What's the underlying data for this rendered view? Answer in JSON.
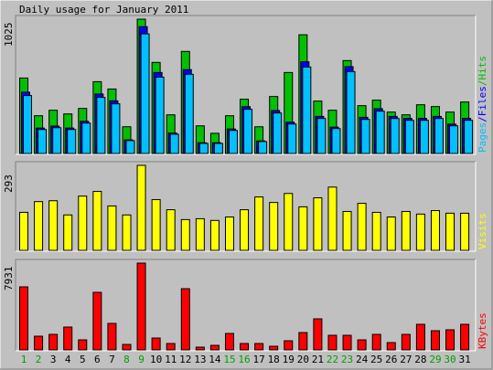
{
  "chart_data": [
    {
      "type": "bar",
      "title": "Daily usage for January 2011",
      "ylim": [
        0,
        1025
      ],
      "yticks": [
        1025
      ],
      "legend_separator": "/",
      "series": [
        {
          "name": "Hits",
          "color": "#00c000",
          "values": [
            576,
            288,
            330,
            302,
            344,
            548,
            492,
            204,
            1025,
            695,
            295,
            779,
            211,
            154,
            288,
            414,
            204,
            435,
            618,
            906,
            400,
            330,
            709,
            365,
            407,
            316,
            295,
            372,
            358,
            316,
            393
          ]
        },
        {
          "name": "Files",
          "color": "#0000ff",
          "values": [
            468,
            194,
            209,
            194,
            246,
            454,
            402,
            104,
            968,
            618,
            156,
            640,
            82,
            82,
            187,
            357,
            96,
            328,
            239,
            700,
            283,
            201,
            663,
            276,
            342,
            283,
            268,
            268,
            283,
            224,
            268
          ]
        },
        {
          "name": "Pages",
          "color": "#00c0ff",
          "values": [
            442,
            183,
            197,
            183,
            232,
            428,
            379,
            98,
            913,
            583,
            147,
            604,
            77,
            77,
            176,
            337,
            91,
            309,
            225,
            660,
            267,
            190,
            625,
            260,
            323,
            267,
            253,
            253,
            267,
            211,
            253
          ]
        }
      ]
    },
    {
      "type": "bar",
      "ylim": [
        0,
        293
      ],
      "yticks": [
        293
      ],
      "series": [
        {
          "name": "Visits",
          "color": "#ffff00",
          "values": [
            131,
            168,
            171,
            122,
            187,
            203,
            153,
            122,
            293,
            175,
            140,
            106,
            109,
            103,
            115,
            140,
            184,
            165,
            196,
            150,
            181,
            218,
            134,
            162,
            131,
            115,
            134,
            125,
            137,
            128,
            128
          ]
        }
      ]
    },
    {
      "type": "bar",
      "ylim": [
        0,
        7931
      ],
      "yticks": [
        7931
      ],
      "categories": [
        "1",
        "2",
        "3",
        "4",
        "5",
        "6",
        "7",
        "8",
        "9",
        "10",
        "11",
        "12",
        "13",
        "14",
        "15",
        "16",
        "17",
        "18",
        "19",
        "20",
        "21",
        "22",
        "23",
        "24",
        "25",
        "26",
        "27",
        "28",
        "29",
        "30",
        "31"
      ],
      "category_colors": [
        "#00a000",
        "#00a000",
        "#000000",
        "#000000",
        "#000000",
        "#000000",
        "#000000",
        "#00a000",
        "#00a000",
        "#000000",
        "#000000",
        "#000000",
        "#000000",
        "#000000",
        "#00a000",
        "#00a000",
        "#000000",
        "#000000",
        "#000000",
        "#000000",
        "#000000",
        "#00a000",
        "#00a000",
        "#000000",
        "#000000",
        "#000000",
        "#000000",
        "#000000",
        "#00a000",
        "#00a000",
        "#000000"
      ],
      "series": [
        {
          "name": "KBytes",
          "color": "#ff0000",
          "values": [
            5761,
            1252,
            1419,
            2087,
            918,
            5260,
            2421,
            501,
            7931,
            1085,
            584,
            5594,
            250,
            417,
            1503,
            584,
            584,
            334,
            835,
            1586,
            2839,
            1336,
            1336,
            918,
            1419,
            668,
            1419,
            2338,
            1753,
            1837,
            2338
          ]
        }
      ]
    }
  ]
}
